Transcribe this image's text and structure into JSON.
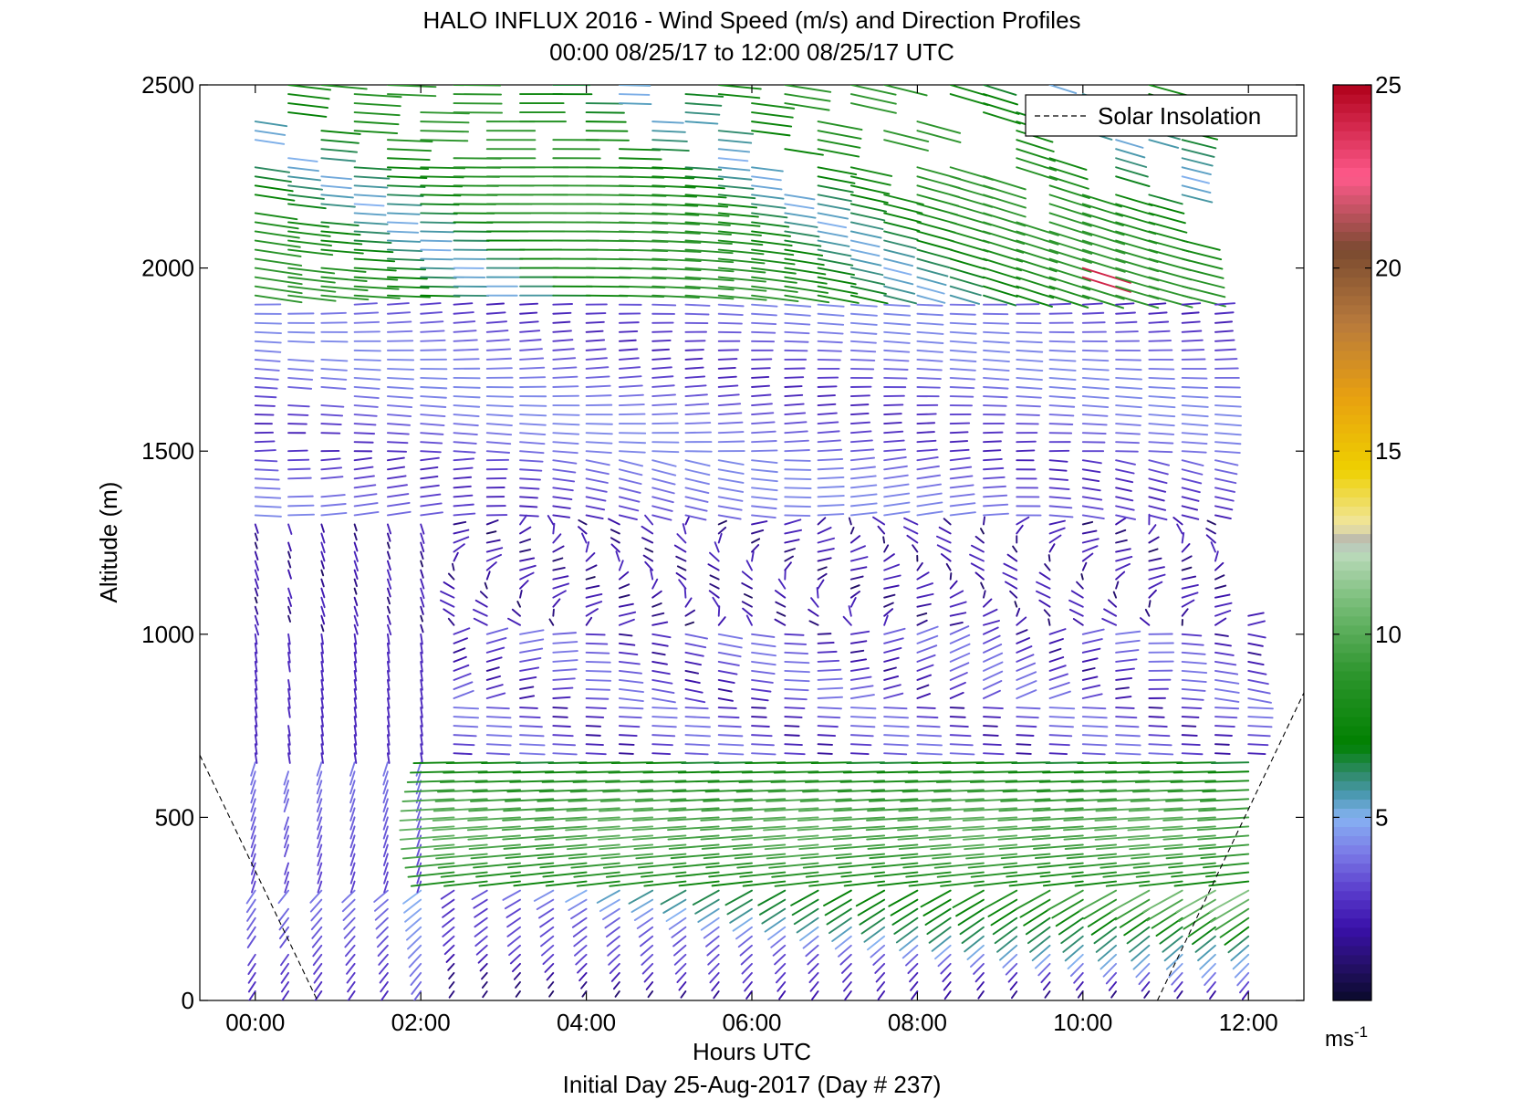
{
  "chart_data": {
    "type": "wind-profile",
    "title_line1": "HALO INFLUX 2016 - Wind Speed (m/s) and Direction Profiles",
    "title_line2": "00:00 08/25/17 to 12:00 08/25/17  UTC",
    "xlabel": "Hours UTC",
    "footer": "Initial Day 25-Aug-2017 (Day # 237)",
    "ylabel": "Altitude (m)",
    "xlim_hours": [
      -0.67,
      12.67
    ],
    "ylim": [
      0,
      2500
    ],
    "x_ticks": [
      {
        "value": 0,
        "label": "00:00"
      },
      {
        "value": 2,
        "label": "02:00"
      },
      {
        "value": 4,
        "label": "04:00"
      },
      {
        "value": 6,
        "label": "06:00"
      },
      {
        "value": 8,
        "label": "08:00"
      },
      {
        "value": 10,
        "label": "10:00"
      },
      {
        "value": 12,
        "label": "12:00"
      }
    ],
    "y_ticks": [
      {
        "value": 0,
        "label": "0"
      },
      {
        "value": 500,
        "label": "500"
      },
      {
        "value": 1000,
        "label": "1000"
      },
      {
        "value": 1500,
        "label": "1500"
      },
      {
        "value": 2000,
        "label": "2000"
      },
      {
        "value": 2500,
        "label": "2500"
      }
    ],
    "legend": {
      "label": "Solar Insolation",
      "position": "top-right",
      "line_style": "dashed"
    },
    "colorbar": {
      "range": [
        0,
        25
      ],
      "ticks": [
        {
          "value": 5,
          "label": "5"
        },
        {
          "value": 10,
          "label": "10"
        },
        {
          "value": 15,
          "label": "15"
        },
        {
          "value": 20,
          "label": "20"
        },
        {
          "value": 25,
          "label": "25"
        }
      ],
      "unit_base": "ms",
      "unit_exp": "-1",
      "stops": [
        {
          "v": 0,
          "c": "#0a0a2a"
        },
        {
          "v": 1,
          "c": "#25106a"
        },
        {
          "v": 2,
          "c": "#3a10aa"
        },
        {
          "v": 3,
          "c": "#5a3ccc"
        },
        {
          "v": 4,
          "c": "#7a78e6"
        },
        {
          "v": 5,
          "c": "#86b2f2"
        },
        {
          "v": 5.6,
          "c": "#4c9ab4"
        },
        {
          "v": 6.2,
          "c": "#2f8a6a"
        },
        {
          "v": 7,
          "c": "#008000"
        },
        {
          "v": 9,
          "c": "#2f962f"
        },
        {
          "v": 11,
          "c": "#7ec07e"
        },
        {
          "v": 12.3,
          "c": "#c0dcc0"
        },
        {
          "v": 12.5,
          "c": "#b0b0b0"
        },
        {
          "v": 13,
          "c": "#f0e6a0"
        },
        {
          "v": 14.5,
          "c": "#eed000"
        },
        {
          "v": 16.5,
          "c": "#e8a010"
        },
        {
          "v": 18.5,
          "c": "#b87a3c"
        },
        {
          "v": 20.5,
          "c": "#7a4a30"
        },
        {
          "v": 22.5,
          "c": "#ff5a8c"
        },
        {
          "v": 25,
          "c": "#b0001a"
        }
      ]
    },
    "solar_insolation": [
      {
        "x": [
          -0.67,
          0.75
        ],
        "y": [
          670,
          0
        ]
      },
      {
        "x": [
          10.9,
          12.67
        ],
        "y": [
          0,
          840
        ]
      }
    ],
    "vectors": {
      "time_start": 0.0,
      "time_step": 0.333,
      "time_count": 31,
      "alt_start": 25,
      "alt_step": 25,
      "arrow_scale_hours_per_ms": 0.05,
      "regimes": [
        {
          "alt_range": [
            0,
            300
          ],
          "speed": "1.5 to 11 increasing with time",
          "direction": "from south-southwest"
        },
        {
          "alt_range": [
            300,
            650
          ],
          "speed": "7 to 10 after 02:30, 3 before",
          "direction": "from west/southwest"
        },
        {
          "alt_range": [
            650,
            1000
          ],
          "speed": "1 to 5",
          "direction": "variable, mostly westerly"
        },
        {
          "alt_range": [
            1000,
            1300
          ],
          "speed": "0.5 to 3",
          "direction": "northerly, variable"
        },
        {
          "alt_range": [
            1300,
            1900
          ],
          "speed": "2 to 5",
          "direction": "from west"
        },
        {
          "alt_range": [
            1900,
            2500
          ],
          "speed": "4 to 10",
          "direction": "from northwest"
        }
      ]
    }
  }
}
